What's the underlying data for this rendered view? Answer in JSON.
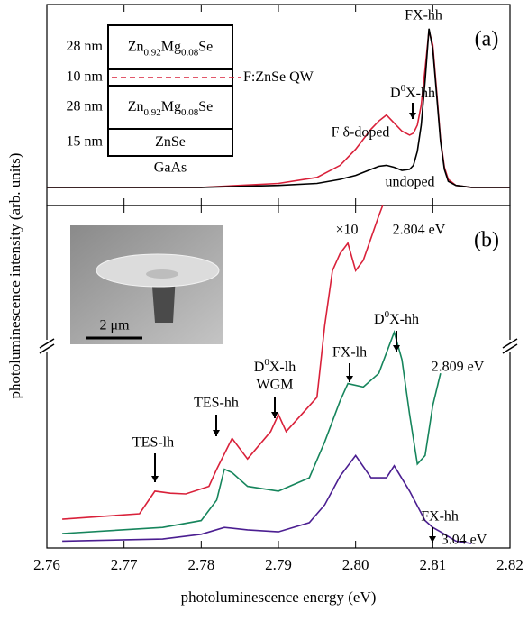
{
  "xlabel": "photoluminescence energy (eV)",
  "ylabel": "photoluminescence intensity (arb. units)",
  "chart_data": [
    {
      "type": "line",
      "panel": "(a)",
      "xlim": [
        2.76,
        2.82
      ],
      "xticks": [
        2.76,
        2.77,
        2.78,
        2.79,
        {
          "value": 2.8,
          "label": "2.80"
        },
        2.81,
        2.82
      ],
      "ylim": [
        0,
        100
      ],
      "series": [
        {
          "name": "F δ-doped",
          "color": "#d9213a",
          "x": [
            2.76,
            2.77,
            2.78,
            2.785,
            2.79,
            2.795,
            2.798,
            2.8,
            2.802,
            2.803,
            2.804,
            2.805,
            2.806,
            2.807,
            2.8075,
            2.808,
            2.8085,
            2.809,
            2.8095,
            2.81,
            2.8105,
            2.811,
            2.8115,
            2.812,
            2.813,
            2.815,
            2.82
          ],
          "values": [
            9,
            9,
            9,
            10,
            11,
            14,
            20,
            28,
            38,
            42,
            45,
            41,
            37,
            35,
            36,
            40,
            50,
            68,
            87,
            80,
            57,
            33,
            19,
            13,
            10,
            9,
            9
          ]
        },
        {
          "name": "undoped",
          "color": "#000000",
          "x": [
            2.76,
            2.77,
            2.78,
            2.785,
            2.79,
            2.795,
            2.798,
            2.8,
            2.802,
            2.803,
            2.804,
            2.805,
            2.806,
            2.807,
            2.8075,
            2.808,
            2.8085,
            2.809,
            2.8095,
            2.81,
            2.8105,
            2.811,
            2.8115,
            2.812,
            2.813,
            2.815,
            2.82
          ],
          "values": [
            9,
            9,
            9,
            9.5,
            10,
            11,
            13,
            15,
            18,
            19.5,
            20,
            19,
            17.5,
            18,
            20,
            27,
            40,
            62,
            88,
            78,
            55,
            32,
            18,
            12,
            10,
            9,
            9
          ]
        }
      ],
      "annotations": [
        "FX-hh",
        [
          "D",
          "0",
          "X-hh"
        ]
      ],
      "inset": {
        "layers": [
          {
            "thickness": "28 nm",
            "material": [
              "Zn",
              "0.92",
              "Mg",
              "0.08",
              "Se"
            ]
          },
          {
            "thickness": "10 nm",
            "material": [
              "F:ZnSe QW"
            ]
          },
          {
            "thickness": "28 nm",
            "material": [
              "Zn",
              "0.92",
              "Mg",
              "0.08",
              "Se"
            ]
          },
          {
            "thickness": "15 nm",
            "material": [
              "ZnSe"
            ]
          }
        ],
        "substrate": "GaAs"
      }
    },
    {
      "type": "line",
      "panel": "(b)",
      "xlim": [
        2.76,
        2.82
      ],
      "xticks": [
        2.76,
        2.77,
        2.78,
        2.79,
        {
          "value": 2.8,
          "label": "2.80"
        },
        2.81,
        2.82
      ],
      "ylim": [
        0,
        100
      ],
      "series": [
        {
          "name": "2.804 eV",
          "color": "#d9213a",
          "x": [
            2.762,
            2.772,
            2.774,
            2.776,
            2.778,
            2.781,
            2.782,
            2.784,
            2.786,
            2.789,
            2.79,
            2.791,
            2.793,
            2.795,
            2.796,
            2.797,
            2.798,
            2.799,
            2.8,
            2.801,
            2.803,
            2.8035
          ],
          "values": [
            8.4,
            10,
            16.6,
            16,
            15.8,
            18,
            23,
            32,
            26,
            34,
            39,
            34,
            39,
            44,
            65,
            81,
            86,
            89,
            81,
            84,
            97,
            100
          ]
        },
        {
          "name": "2.809 eV",
          "color": "#16855c",
          "x": [
            2.762,
            2.775,
            2.78,
            2.782,
            2.783,
            2.784,
            2.786,
            2.79,
            2.794,
            2.796,
            2.798,
            2.799,
            2.801,
            2.803,
            2.805,
            2.806,
            2.807,
            2.808,
            2.809,
            2.81,
            2.811
          ],
          "values": [
            4.2,
            6,
            8,
            14,
            23,
            22,
            18,
            16.6,
            20.5,
            31,
            43,
            48,
            47,
            51,
            63,
            55,
            39,
            24.5,
            27,
            41.6,
            51
          ]
        },
        {
          "name": "3.04 eV",
          "color": "#4b1e91",
          "x": [
            2.762,
            2.775,
            2.78,
            2.783,
            2.786,
            2.79,
            2.794,
            2.796,
            2.798,
            2.8,
            2.802,
            2.804,
            2.805,
            2.807,
            2.809,
            2.81,
            2.811,
            2.813,
            2.815
          ],
          "values": [
            2,
            2.6,
            4,
            6,
            5.3,
            4.7,
            7.4,
            12.6,
            21,
            27,
            20.5,
            20.5,
            24,
            16.6,
            8,
            6,
            4.7,
            2,
            1.3
          ]
        }
      ],
      "annotations": [
        "×10",
        "TES-lh",
        "TES-hh",
        [
          "D",
          "0",
          "X-lh"
        ],
        "WGM",
        "FX-lh",
        [
          "D",
          "0",
          "X-hh"
        ],
        "FX-hh"
      ],
      "scale_bar": "2 μm"
    }
  ]
}
